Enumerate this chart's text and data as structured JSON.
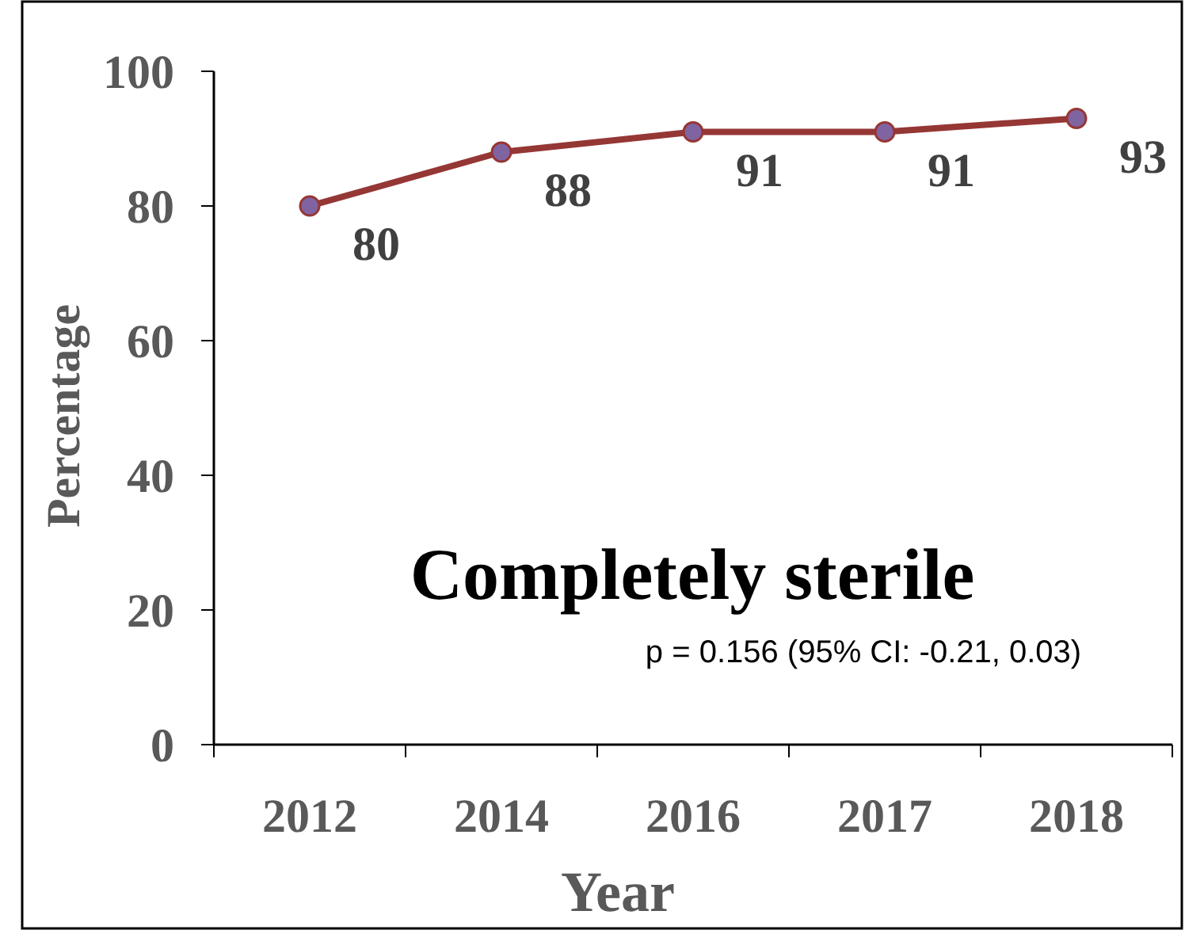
{
  "chart_data": {
    "type": "line",
    "title": "Completely sterile",
    "xlabel": "Year",
    "ylabel": "Percentage",
    "categories": [
      "2012",
      "2014",
      "2016",
      "2017",
      "2018"
    ],
    "series": [
      {
        "color": "#953735",
        "values": [
          80,
          88,
          91,
          91,
          93
        ]
      }
    ],
    "ylim": [
      0,
      100
    ],
    "yticks": [
      0,
      20,
      40,
      60,
      80,
      100
    ],
    "data_labels": true,
    "marker": "circle",
    "annotations": [
      "p = 0.156 (95% CI: -0.21, 0.03)"
    ]
  }
}
